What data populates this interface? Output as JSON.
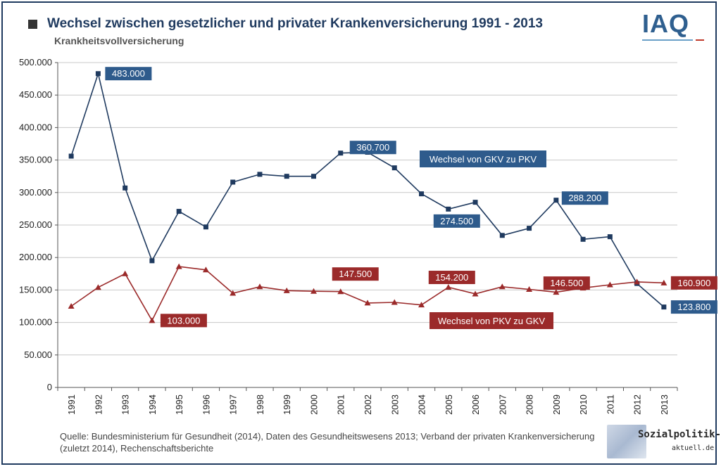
{
  "header": {
    "title": "Wechsel zwischen gesetzlicher und privater Krankenversicherung 1991 - 2013",
    "subtitle": "Krankheitsvollversicherung"
  },
  "logo": {
    "text": "IAQ"
  },
  "footer": {
    "source": "Quelle: Bundesministerium für Gesundheit (2014), Daten des Gesundheitswesens 2013; Verband der privaten Krankenversicherung (zuletzt 2014), Rechenschaftsberichte",
    "watermark_line1": "Sozialpolitik-",
    "watermark_line2": "aktuell.de"
  },
  "chart_data": {
    "type": "line",
    "title": "Wechsel zwischen gesetzlicher und privater Krankenversicherung 1991 - 2013",
    "subtitle": "Krankheitsvollversicherung",
    "x": [
      "1991",
      "1992",
      "1993",
      "1994",
      "1995",
      "1996",
      "1997",
      "1998",
      "1999",
      "2000",
      "2001",
      "2002",
      "2003",
      "2004",
      "2005",
      "2006",
      "2007",
      "2008",
      "2009",
      "2010",
      "2011",
      "2012",
      "2013"
    ],
    "ylim": [
      0,
      500000
    ],
    "yticks": [
      0,
      50000,
      100000,
      150000,
      200000,
      250000,
      300000,
      350000,
      400000,
      450000,
      500000
    ],
    "ytick_labels": [
      "0",
      "50.000",
      "100.000",
      "150.000",
      "200.000",
      "250.000",
      "300.000",
      "350.000",
      "400.000",
      "450.000",
      "500.000"
    ],
    "grid": true,
    "series": [
      {
        "name": "Wechsel von GKV zu PKV",
        "color": "#1f3a5f",
        "marker": "square",
        "values": [
          356000,
          483000,
          307000,
          195000,
          271000,
          247000,
          316000,
          328000,
          325000,
          325000,
          360700,
          362000,
          338000,
          298000,
          274500,
          285000,
          234000,
          245000,
          288200,
          228000,
          232000,
          160000,
          123800
        ]
      },
      {
        "name": "Wechsel von PKV zu GKV",
        "color": "#9b2a2a",
        "marker": "triangle",
        "values": [
          125000,
          154000,
          175000,
          103000,
          186000,
          181000,
          145000,
          155000,
          149000,
          148000,
          147500,
          130000,
          131000,
          127000,
          154200,
          144000,
          155000,
          151000,
          146500,
          153000,
          158000,
          162500,
          160900
        ]
      }
    ],
    "annotations": [
      {
        "series": 0,
        "index": 1,
        "text": "483.000"
      },
      {
        "series": 0,
        "index": 10,
        "text": "360.700"
      },
      {
        "series": 0,
        "index": 14,
        "text": "274.500"
      },
      {
        "series": 0,
        "index": 18,
        "text": "288.200"
      },
      {
        "series": 0,
        "index": 22,
        "text": "123.800"
      },
      {
        "series": 1,
        "index": 3,
        "text": "103.000"
      },
      {
        "series": 1,
        "index": 10,
        "text": "147.500"
      },
      {
        "series": 1,
        "index": 14,
        "text": "154.200"
      },
      {
        "series": 1,
        "index": 18,
        "text": "146.500"
      },
      {
        "series": 1,
        "index": 22,
        "text": "160.900"
      }
    ]
  }
}
